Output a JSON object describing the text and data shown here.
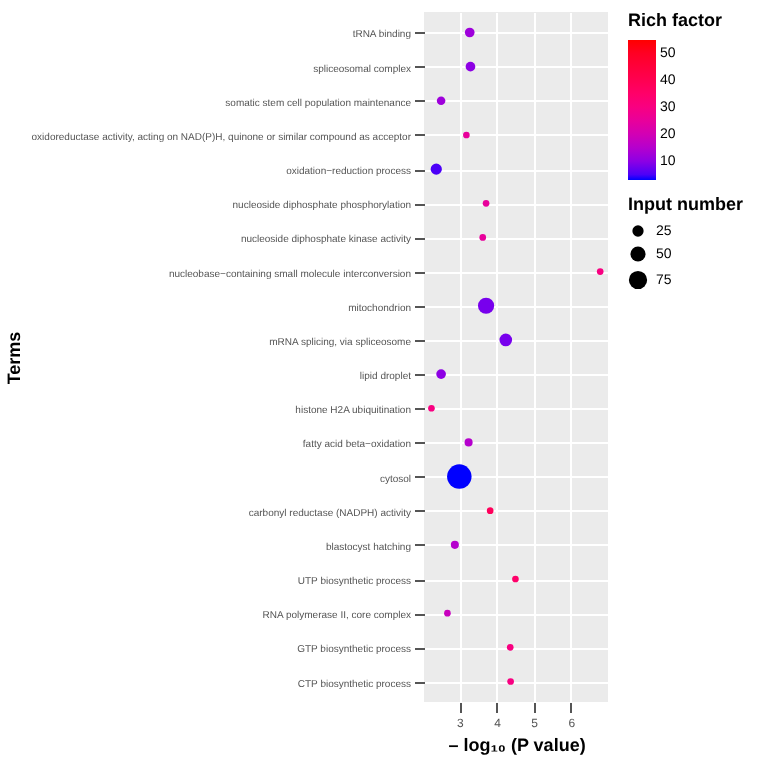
{
  "chart_data": {
    "type": "bubble",
    "orientation": "horizontal",
    "xlabel": "– log₁₀ (P value)",
    "ylabel": "Terms",
    "clabel": "Rich factor",
    "legend_title": "Input number",
    "categories": [
      "tRNA binding",
      "spliceosomal complex",
      "somatic stem cell population maintenance",
      "oxidoreductase activity, acting on NAD(P)H, quinone or similar compound as acceptor",
      "oxidation−reduction process",
      "nucleoside diphosphate phosphorylation",
      "nucleoside diphosphate kinase activity",
      "nucleobase−containing small molecule interconversion",
      "mitochondrion",
      "mRNA splicing, via spliceosome",
      "lipid droplet",
      "histone H2A ubiquitination",
      "fatty acid beta−oxidation",
      "cytosol",
      "carbonyl reductase (NADPH) activity",
      "blastocyst hatching",
      "UTP biosynthetic process",
      "RNA polymerase II, core complex",
      "GTP biosynthetic process",
      "CTP biosynthetic process"
    ],
    "values": [
      3.28,
      3.3,
      2.51,
      3.19,
      2.38,
      3.72,
      3.63,
      6.79,
      3.72,
      4.25,
      2.51,
      2.25,
      3.25,
      3.0,
      3.83,
      2.88,
      4.51,
      2.68,
      4.37,
      4.38
    ],
    "sizes": [
      17,
      17,
      12,
      5,
      25,
      5,
      5,
      5,
      58,
      33,
      17,
      5,
      10,
      140,
      5,
      10,
      5,
      5,
      5,
      5
    ],
    "size_legend": [
      25,
      50,
      75
    ],
    "cvalues": [
      12,
      10,
      12,
      25,
      5,
      25,
      25,
      30,
      8,
      8,
      10,
      30,
      15,
      3,
      38,
      15,
      35,
      18,
      30,
      30
    ],
    "clim": [
      3,
      55
    ],
    "cticks": [
      10,
      20,
      30,
      40,
      50
    ],
    "xlim": [
      2.05,
      7.0
    ],
    "xticks": [
      3,
      4,
      5,
      6
    ],
    "grid": true
  }
}
